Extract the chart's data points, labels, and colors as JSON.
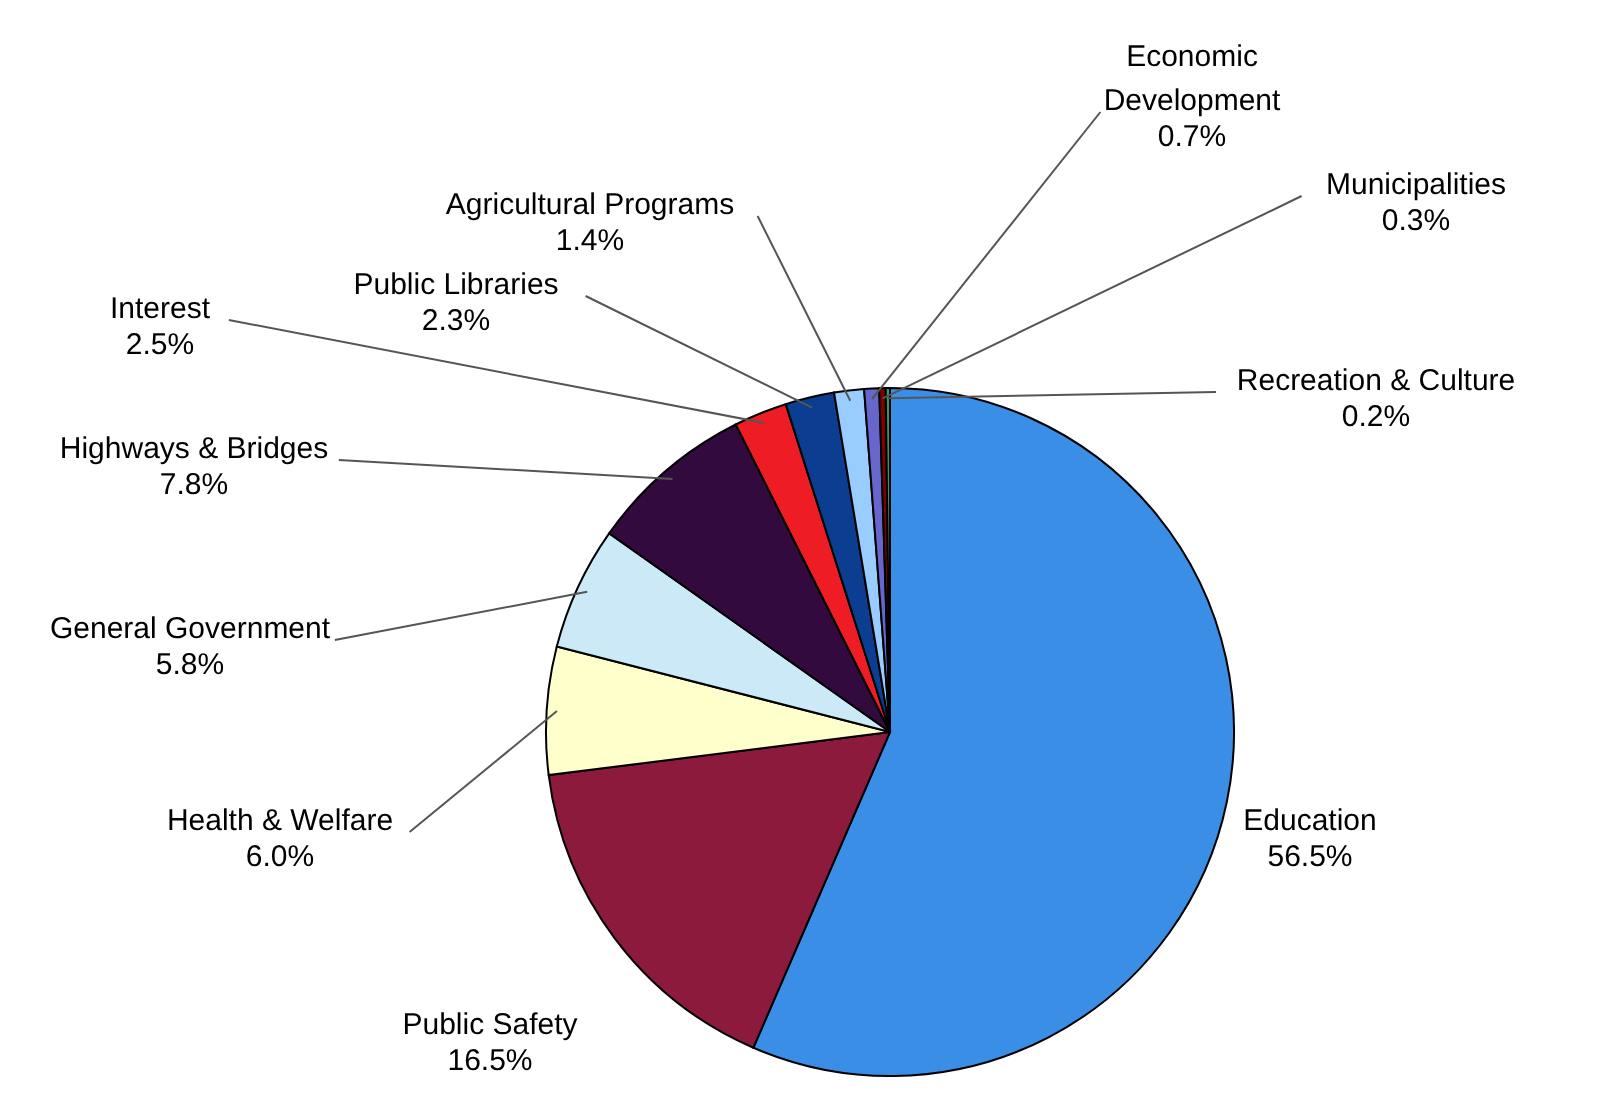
{
  "chart_data": {
    "type": "pie",
    "categories": [
      "Education",
      "Public Safety",
      "Health & Welfare",
      "General Government",
      "Highways & Bridges",
      "Interest",
      "Public Libraries",
      "Agricultural Programs",
      "Economic Development",
      "Municipalities",
      "Recreation & Culture"
    ],
    "values": [
      56.5,
      16.5,
      6.0,
      5.8,
      7.8,
      2.5,
      2.3,
      1.4,
      0.7,
      0.3,
      0.2
    ],
    "colors": [
      "#3a8ee6",
      "#8c1a3c",
      "#ffffcc",
      "#cce9f7",
      "#330a3d",
      "#ee1c25",
      "#0b3d91",
      "#99ccff",
      "#6666cc",
      "#800000",
      "#339966"
    ],
    "value_labels": [
      "56.5%",
      "16.5%",
      "6.0%",
      "5.8%",
      "7.8%",
      "2.5%",
      "2.3%",
      "1.4%",
      "0.7%",
      "0.3%",
      "0.2%"
    ],
    "legend": false
  }
}
